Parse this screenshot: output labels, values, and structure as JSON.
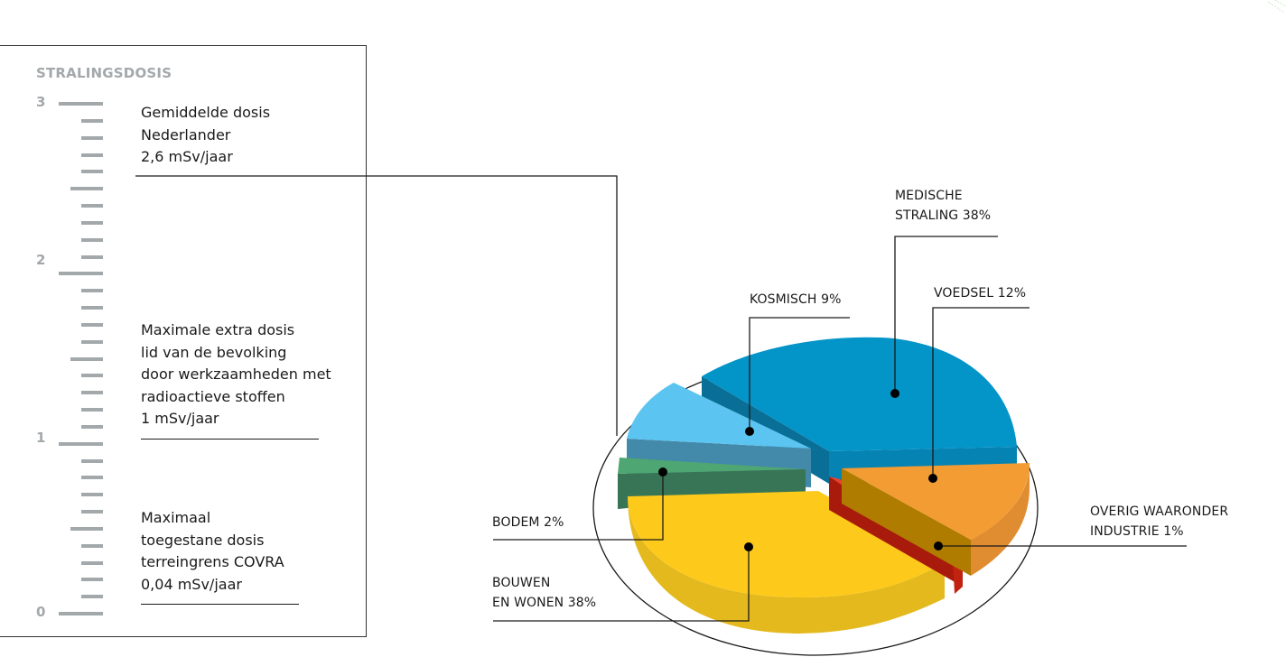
{
  "ruler": {
    "title": "STRALINGSDOSIS",
    "ticks": [
      "3",
      "2",
      "1",
      "0"
    ],
    "max": 3,
    "min": 0,
    "minor_per_unit": 10
  },
  "notes": [
    {
      "text": "Gemiddelde dosis\nNederlander\n2,6 mSv/jaar",
      "value": 2.6,
      "unit": "mSv/jaar"
    },
    {
      "text": "Maximale extra dosis\nlid van de bevolking\ndoor werkzaamheden met\nradioactieve stoffen\n1 mSv/jaar",
      "value": 1,
      "unit": "mSv/jaar"
    },
    {
      "text": "Maximaal\ntoegestane dosis\nterreingrens COVRA\n0,04 mSv/jaar",
      "value": 0.04,
      "unit": "mSv/jaar"
    }
  ],
  "pie_labels": {
    "medische": "MEDISCHE\nSTRALING 38%",
    "voedsel": "VOEDSEL 12%",
    "kosmisch": "KOSMISCH 9%",
    "bodem": "BODEM 2%",
    "bouwen": "BOUWEN\nEN WONEN 38%",
    "overig": "OVERIG WAARONDER\nINDUSTRIE 1%"
  },
  "colors": {
    "medische": "#0394c8",
    "medische_side": "#0a6f96",
    "voedsel": "#f39c33",
    "voedsel_side": "#b07c00",
    "overig": "#e8412c",
    "overig_side": "#a81b0c",
    "bouwen": "#fdc91a",
    "bouwen_side": "#e4b91e",
    "bodem": "#4ea672",
    "bodem_side": "#387556",
    "kosmisch": "#5bc4f1",
    "kosmisch_side": "#4389aa",
    "ruler": "#a3a8ab"
  },
  "chart_data": [
    {
      "type": "pie",
      "title": "",
      "categories": [
        "Medische straling",
        "Voedsel",
        "Overig waaronder industrie",
        "Bouwen en wonen",
        "Bodem",
        "Kosmisch"
      ],
      "values": [
        38,
        12,
        1,
        38,
        2,
        9
      ],
      "labels": [
        "MEDISCHE STRALING 38%",
        "VOEDSEL 12%",
        "OVERIG WAARONDER INDUSTRIE 1%",
        "BOUWEN EN WONEN 38%",
        "BODEM 2%",
        "KOSMISCH 9%"
      ],
      "unit": "%",
      "style": "3D exploded pie"
    },
    {
      "type": "bar",
      "title": "STRALINGSDOSIS",
      "ylabel": "mSv/jaar",
      "ylim": [
        0,
        3
      ],
      "yticks": [
        0,
        1,
        2,
        3
      ],
      "markers": [
        {
          "label": "Gemiddelde dosis Nederlander",
          "value": 2.6
        },
        {
          "label": "Maximale extra dosis lid van de bevolking door werkzaamheden met radioactieve stoffen",
          "value": 1
        },
        {
          "label": "Maximaal toegestane dosis terreingrens COVRA",
          "value": 0.04
        }
      ]
    }
  ]
}
